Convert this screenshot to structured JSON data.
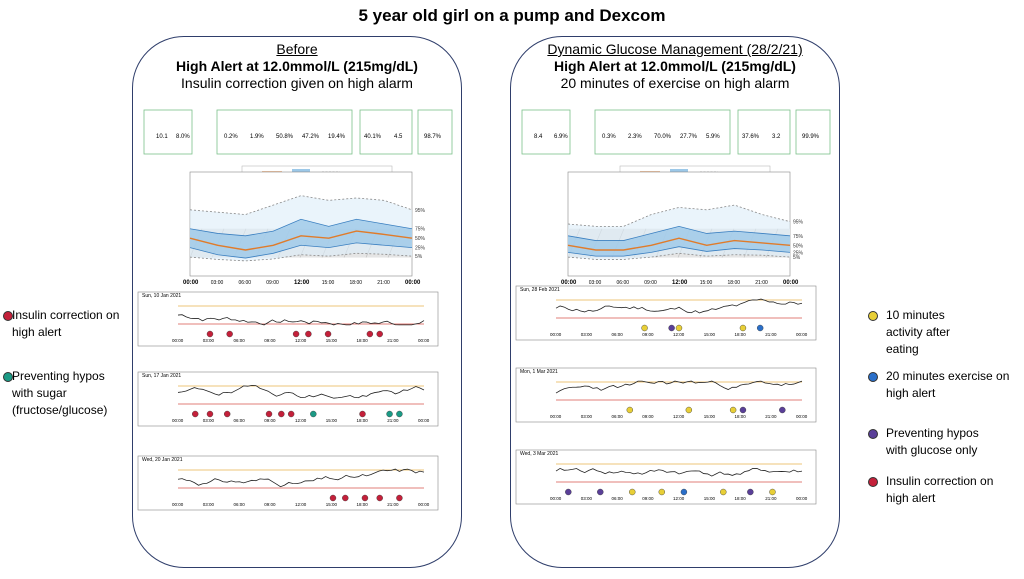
{
  "title": "5 year old girl on a pump and Dexcom",
  "colors": {
    "insulin": "#c4203a",
    "sugar": "#1b9a85",
    "activity": "#e8cf37",
    "exercise": "#2a6fc9",
    "glucose_only": "#5a3f98"
  },
  "left": {
    "heading": "Before",
    "alert": "High Alert at 12.0mmol/L (215mg/dL)",
    "action": "Insulin correction given on high alarm",
    "stats": {
      "a_val1": "10.1",
      "a_val2": "8.0%",
      "b_vals": [
        "0.2%",
        "1.9%",
        "50.8%",
        "47.2%",
        "19.4%"
      ],
      "c_vals": [
        "40.1%",
        "4.5",
        "98.7%"
      ]
    },
    "days": [
      "Sun, 10 Jan 2021",
      "Sun, 17 Jan 2021",
      "Wed, 20 Jan 2021"
    ]
  },
  "right": {
    "heading": "Dynamic Glucose Management (28/2/21)",
    "alert": "High Alert at 12.0mmol/L (215mg/dL)",
    "action": "20 minutes of exercise on high alarm",
    "stats": {
      "a_val1": "8.4",
      "a_val2": "6.9%",
      "b_vals": [
        "0.3%",
        "2.3%",
        "70.0%",
        "27.7%",
        "5.9%"
      ],
      "c_vals": [
        "37.6%",
        "3.2",
        "99.9%"
      ]
    },
    "days": [
      "Sun, 28 Feb 2021",
      "Mon, 1 Mar 2021",
      "Wed, 3 Mar 2021"
    ]
  },
  "left_legend": [
    {
      "text": "Insulin correction on\nhigh alert",
      "color": "insulin"
    },
    {
      "text": "Preventing hypos\nwith sugar\n(fructose/glucose)",
      "color": "sugar"
    }
  ],
  "right_legend": [
    {
      "text": "10 minutes\nactivity after\neating",
      "color": "activity"
    },
    {
      "text": "20 minutes exercise on\nhigh alert",
      "color": "exercise"
    },
    {
      "text": "Preventing hypos\nwith glucose only",
      "color": "glucose_only"
    },
    {
      "text": "Insulin correction on\nhigh alert",
      "color": "insulin"
    }
  ],
  "chart_data": [
    {
      "type": "line",
      "x": [
        "00:00",
        "03:00",
        "06:00",
        "09:00",
        "12:00",
        "15:00",
        "18:00",
        "21:00",
        "00:00"
      ],
      "ylim": [
        0,
        22
      ],
      "target": [
        3.9,
        10.0
      ],
      "series": [
        {
          "name": "50%",
          "values": [
            8,
            6.5,
            5.5,
            6.5,
            8.5,
            8,
            9.5,
            8.8,
            8
          ]
        },
        {
          "name": "75%",
          "values": [
            10,
            9,
            8.5,
            9.5,
            12,
            10.5,
            12,
            11,
            10
          ]
        },
        {
          "name": "25%",
          "values": [
            6,
            4.5,
            3.8,
            4.8,
            6.5,
            6,
            7,
            6.5,
            6
          ]
        },
        {
          "name": "95%",
          "values": [
            14,
            13.5,
            13,
            15,
            17,
            16,
            16.5,
            16,
            14
          ]
        },
        {
          "name": "5%",
          "values": [
            4,
            3.5,
            3.2,
            3.6,
            4.5,
            4.2,
            4.8,
            4.6,
            4.2
          ]
        }
      ]
    },
    {
      "type": "line",
      "x": [
        "00:00",
        "03:00",
        "06:00",
        "09:00",
        "12:00",
        "15:00",
        "18:00",
        "21:00",
        "00:00"
      ],
      "ylim": [
        0,
        22
      ],
      "target": [
        3.9,
        10.0
      ],
      "series": [
        {
          "name": "50%",
          "values": [
            6.5,
            5.5,
            5.5,
            6.5,
            8,
            6.5,
            7.5,
            7,
            6.5
          ]
        },
        {
          "name": "75%",
          "values": [
            8.5,
            7.5,
            7.5,
            9,
            10.5,
            9,
            9.5,
            9,
            8.5
          ]
        },
        {
          "name": "25%",
          "values": [
            5,
            4.2,
            4.2,
            5,
            6.2,
            5.2,
            5.8,
            5.5,
            5
          ]
        },
        {
          "name": "95%",
          "values": [
            11,
            10.5,
            10.5,
            13,
            14.5,
            14,
            15,
            13,
            11.5
          ]
        },
        {
          "name": "5%",
          "values": [
            4,
            3.5,
            3.5,
            4,
            4.8,
            4.2,
            4.5,
            4.4,
            4
          ]
        }
      ]
    }
  ]
}
